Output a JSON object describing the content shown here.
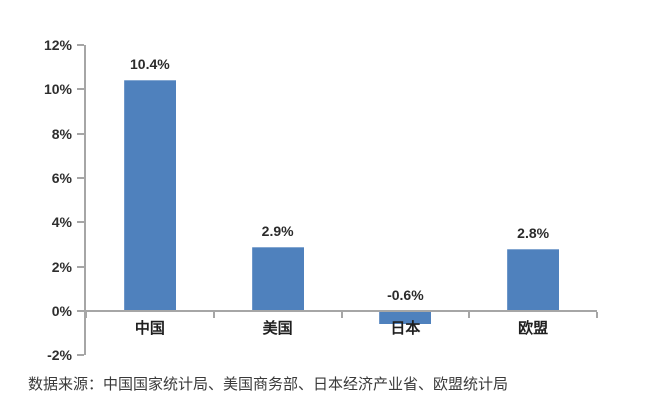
{
  "chart_data": {
    "type": "bar",
    "title": "",
    "xlabel": "",
    "ylabel": "",
    "categories": [
      "中国",
      "美国",
      "日本",
      "欧盟"
    ],
    "values": [
      10.4,
      2.9,
      -0.6,
      2.8
    ],
    "value_labels": [
      "10.4%",
      "2.9%",
      "-0.6%",
      "2.8%"
    ],
    "y_ticks": [
      12,
      10,
      8,
      6,
      4,
      2,
      0,
      -2
    ],
    "y_tick_labels": [
      "12%",
      "10%",
      "8%",
      "6%",
      "4%",
      "2%",
      "0%",
      "-2%"
    ],
    "ylim": [
      -2,
      12
    ],
    "grid": false,
    "legend_position": "none",
    "bar_color": "#4f81bd",
    "axis_color": "#a6a6a6",
    "label_color": "#2b2b2b"
  },
  "source_note": "数据来源：中国国家统计局、美国商务部、日本经济产业省、欧盟统计局"
}
